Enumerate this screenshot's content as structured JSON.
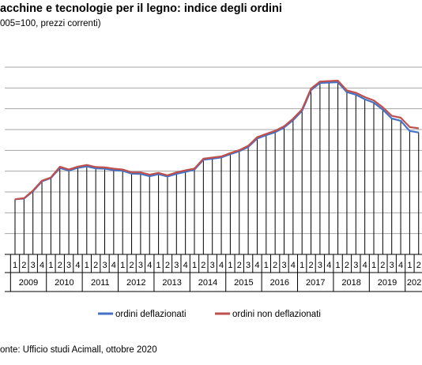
{
  "header": {
    "title": "acchine e tecnologie per il legno: indice degli ordini",
    "subtitle": "005=100, prezzi correnti)"
  },
  "footer": {
    "source": "onte: Ufficio studi Acimall, ottobre 2020"
  },
  "chart_data": {
    "type": "line",
    "title": "acchine e tecnologie per il legno: indice degli ordini",
    "subtitle": "005=100, prezzi correnti)",
    "quarters": [
      "1",
      "2",
      "3",
      "4",
      "1",
      "2",
      "3",
      "4",
      "1",
      "2",
      "3",
      "4",
      "1",
      "2",
      "3",
      "4",
      "1",
      "2",
      "3",
      "4",
      "1",
      "2",
      "3",
      "4",
      "1",
      "2",
      "3",
      "4",
      "1",
      "2",
      "3",
      "4",
      "1",
      "2",
      "3",
      "4",
      "1",
      "2",
      "3",
      "4",
      "1",
      "2",
      "3",
      "4",
      "1",
      "2"
    ],
    "years": [
      {
        "label": "2009",
        "start": 0,
        "count": 4
      },
      {
        "label": "2010",
        "start": 4,
        "count": 4
      },
      {
        "label": "2011",
        "start": 8,
        "count": 4
      },
      {
        "label": "2012",
        "start": 12,
        "count": 4
      },
      {
        "label": "2013",
        "start": 16,
        "count": 4
      },
      {
        "label": "2014",
        "start": 20,
        "count": 4
      },
      {
        "label": "2015",
        "start": 24,
        "count": 4
      },
      {
        "label": "2016",
        "start": 28,
        "count": 4
      },
      {
        "label": "2017",
        "start": 32,
        "count": 4
      },
      {
        "label": "2018",
        "start": 36,
        "count": 4
      },
      {
        "label": "2019",
        "start": 40,
        "count": 4
      },
      {
        "label": "202",
        "start": 44,
        "count": 2
      }
    ],
    "ylim": [
      0,
      9
    ],
    "grid": true,
    "legend": "bottom",
    "series": [
      {
        "name": "ordini deflazionati",
        "color": "#4472c4",
        "values": [
          2.65,
          2.68,
          3.03,
          3.51,
          3.67,
          4.15,
          4.03,
          4.16,
          4.23,
          4.13,
          4.12,
          4.05,
          4.02,
          3.88,
          3.87,
          3.76,
          3.86,
          3.74,
          3.87,
          3.97,
          4.07,
          4.55,
          4.6,
          4.66,
          4.82,
          4.96,
          5.16,
          5.57,
          5.73,
          5.87,
          6.1,
          6.45,
          6.9,
          7.9,
          8.24,
          8.26,
          8.28,
          7.8,
          7.68,
          7.46,
          7.29,
          6.96,
          6.53,
          6.42,
          5.93,
          5.86
        ]
      },
      {
        "name": "ordini non deflazionati",
        "color": "#c0504d",
        "values": [
          2.65,
          2.7,
          3.07,
          3.54,
          3.7,
          4.21,
          4.08,
          4.22,
          4.3,
          4.2,
          4.18,
          4.12,
          4.08,
          3.94,
          3.94,
          3.83,
          3.92,
          3.8,
          3.94,
          4.04,
          4.12,
          4.6,
          4.65,
          4.71,
          4.87,
          5.01,
          5.22,
          5.63,
          5.79,
          5.94,
          6.16,
          6.52,
          6.97,
          7.97,
          8.31,
          8.33,
          8.35,
          7.88,
          7.77,
          7.56,
          7.4,
          7.07,
          6.66,
          6.57,
          6.12,
          6.06
        ]
      }
    ]
  }
}
